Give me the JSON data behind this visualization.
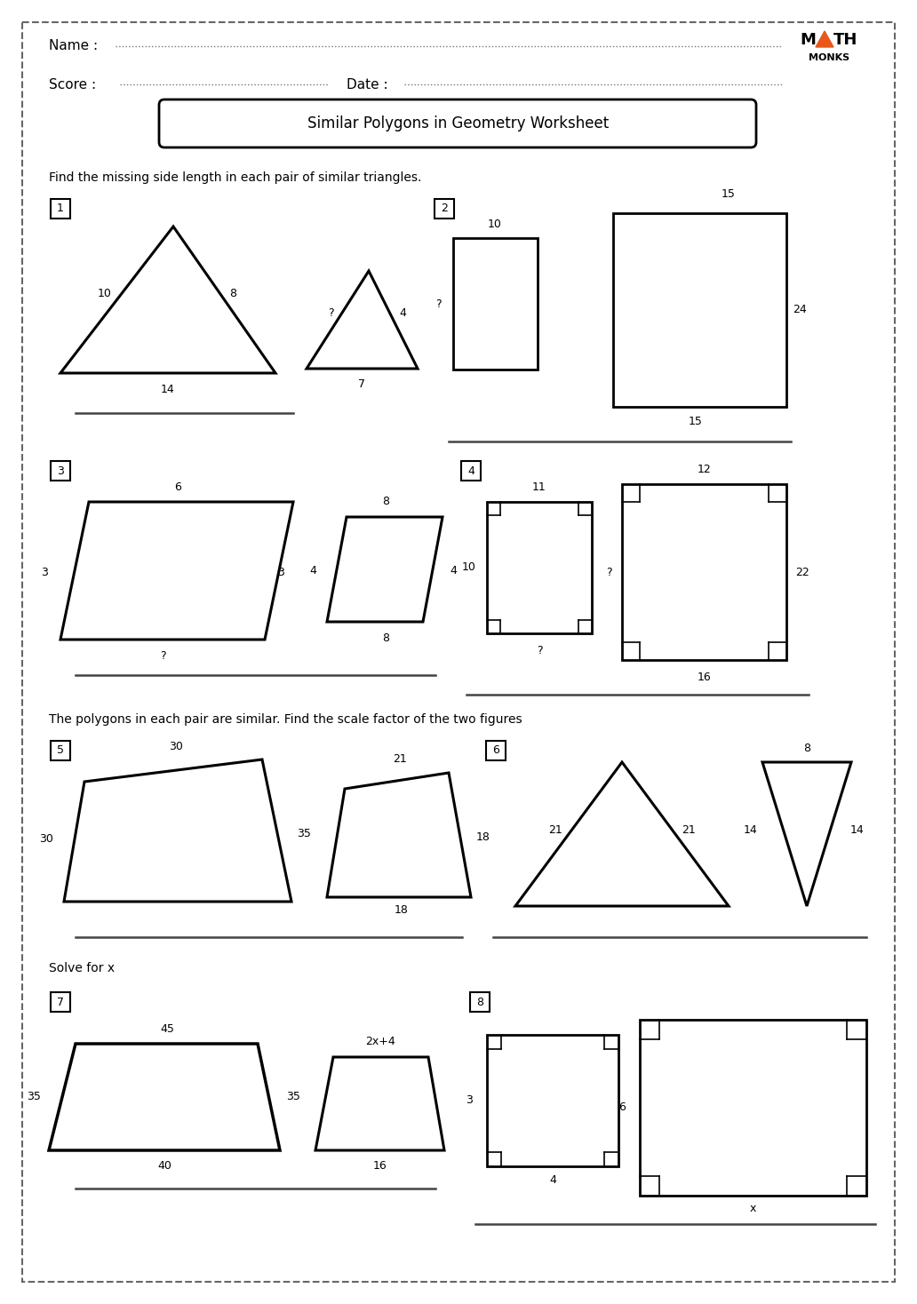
{
  "title": "Similar Polygons in Geometry Worksheet",
  "instruction1": "Find the missing side length in each pair of similar triangles.",
  "instruction2": "The polygons in each pair are similar. Find the scale factor of the two figures",
  "instruction3": "Solve for x",
  "bg_color": "#ffffff",
  "orange_color": "#e8581a"
}
